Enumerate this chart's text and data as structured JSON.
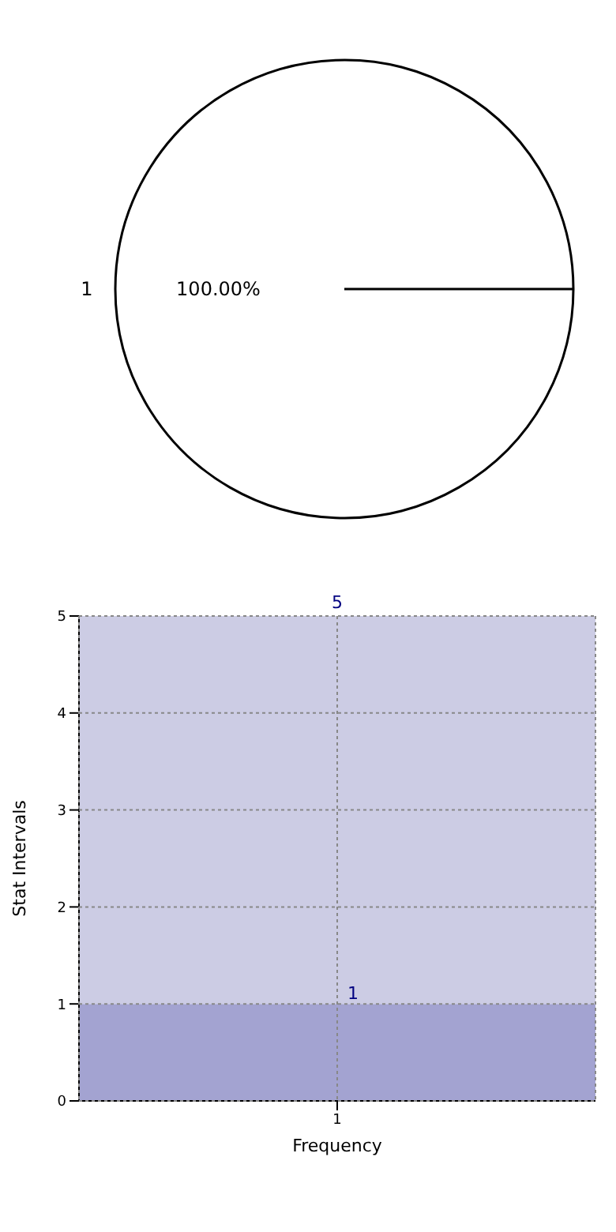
{
  "chart_data": [
    {
      "type": "pie",
      "categories": [
        "1"
      ],
      "values": [
        100
      ],
      "colors": [
        "#ffffff"
      ],
      "value_labels": [
        "100.00%"
      ]
    },
    {
      "type": "bar",
      "categories": [
        "1"
      ],
      "xlabel": "Frequency",
      "ylabel": "Stat Intervals",
      "ylim": [
        0,
        5
      ],
      "yticks": [
        0,
        1,
        2,
        3,
        4,
        5
      ],
      "grid": true,
      "stacked": true,
      "totals": [
        "5"
      ],
      "series": [
        {
          "color": "#a3a3d1",
          "values": [
            1
          ],
          "value_labels": [
            "1"
          ]
        },
        {
          "color": "#cccce4",
          "values": [
            4
          ],
          "value_labels": [
            null
          ]
        }
      ]
    }
  ]
}
